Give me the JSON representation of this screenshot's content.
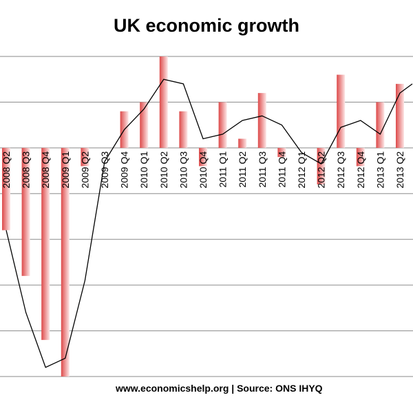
{
  "chart_data": {
    "type": "bar",
    "title": "UK economic growth",
    "source": "www.economicshelp.org | Source: ONS  IHYQ",
    "categories": [
      "2008 Q2",
      "2008 Q3",
      "2008 Q4",
      "2009 Q1",
      "2009 Q2",
      "2009 Q3",
      "2009 Q4",
      "2010 Q1",
      "2010 Q2",
      "2010 Q3",
      "2010 Q4",
      "2011 Q1",
      "2011 Q2",
      "2011 Q3",
      "2011 Q4",
      "2012 Q1",
      "2012 Q2",
      "2012 Q3",
      "2012 Q4",
      "2013 Q1",
      "2013 Q2"
    ],
    "series": [
      {
        "type": "bar",
        "values": [
          -1.8,
          -2.8,
          -4.2,
          -5.0,
          -0.4,
          0.0,
          0.8,
          1.0,
          2.0,
          0.8,
          -0.4,
          1.0,
          0.2,
          1.2,
          -0.2,
          0.0,
          -0.8,
          1.6,
          -0.4,
          1.0,
          1.4
        ],
        "color": "#e05555"
      },
      {
        "type": "line",
        "values": [
          -1.8,
          -3.6,
          -4.8,
          -4.6,
          -2.9,
          -0.3,
          0.4,
          0.85,
          1.5,
          1.4,
          0.2,
          0.3,
          0.6,
          0.7,
          0.5,
          -0.1,
          -0.35,
          0.45,
          0.6,
          0.3,
          1.2
        ],
        "color": "#000000"
      }
    ],
    "ylim": [
      -5.0,
      2.0
    ],
    "grid": true,
    "legend": "none"
  },
  "colors": {
    "bar_dark": "#dd4a4a",
    "bar_light": "#fde6e6",
    "line": "#000000",
    "grid": "#8a8a8a"
  }
}
